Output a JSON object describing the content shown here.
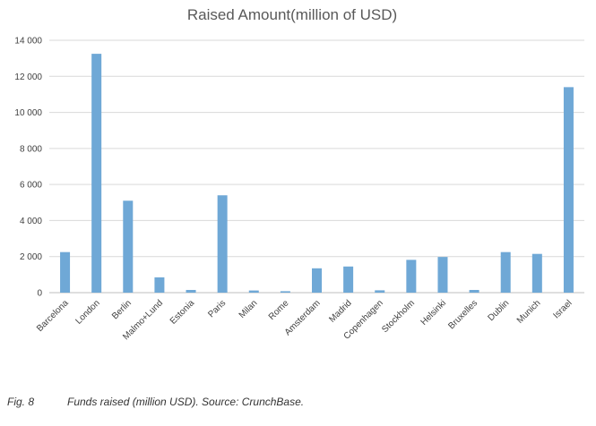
{
  "chart_data": {
    "type": "bar",
    "title": "Raised Amount(million of USD)",
    "categories": [
      "Barcelona",
      "London",
      "Berlin",
      "Malmo+Lund",
      "Estonia",
      "Paris",
      "Milan",
      "Rome",
      "Amsterdam",
      "Madrid",
      "Copenhagen",
      "Stockholm",
      "Helsinki",
      "Bruxelles",
      "Dublin",
      "Munich",
      "Israel"
    ],
    "values": [
      2250,
      13250,
      5100,
      850,
      150,
      5400,
      120,
      80,
      1350,
      1450,
      130,
      1820,
      1980,
      150,
      2250,
      2150,
      11400
    ],
    "ylim": [
      0,
      14000
    ],
    "yticks": [
      0,
      2000,
      4000,
      6000,
      8000,
      10000,
      12000,
      14000
    ],
    "ytick_labels": [
      "0",
      "2 000",
      "4 000",
      "6 000",
      "8 000",
      "10 000",
      "12 000",
      "14 000"
    ],
    "grid": true,
    "bar_color": "#6fa8d6"
  },
  "caption": {
    "figure_label": "Fig. 8",
    "text": "Funds raised (million USD). Source: CrunchBase."
  }
}
